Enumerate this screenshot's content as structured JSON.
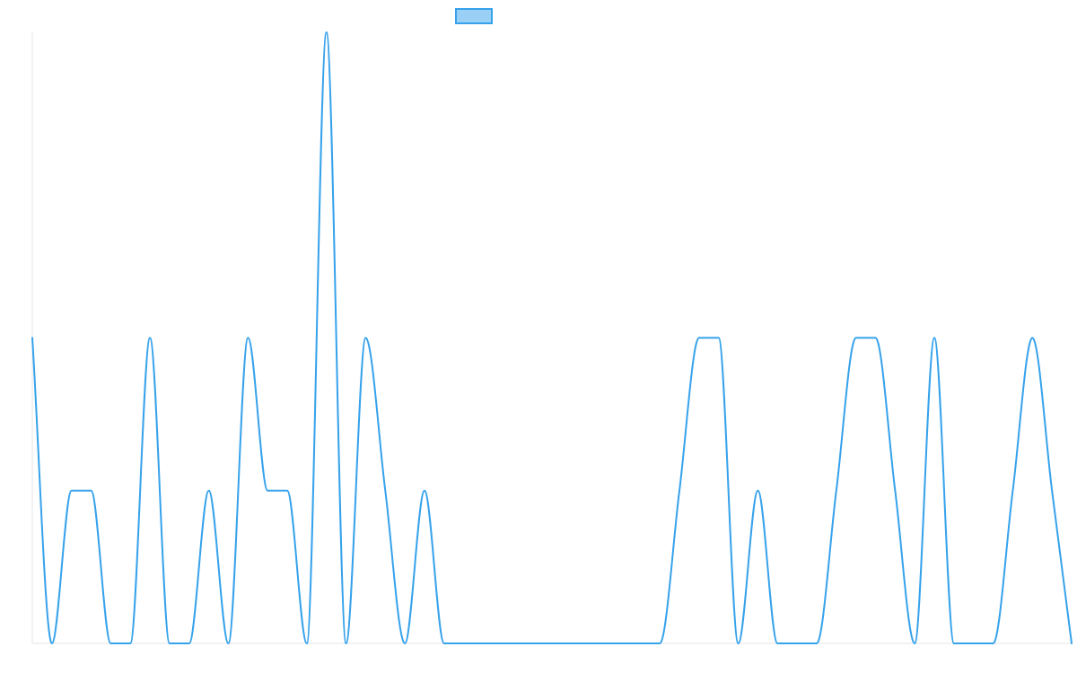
{
  "chart_data": {
    "type": "line",
    "title": "",
    "xlabel": "",
    "ylabel": "",
    "ylim": [
      0,
      4
    ],
    "grid": false,
    "legend": "top-center",
    "series": [
      {
        "name": "",
        "color": "#36a2eb",
        "fill_color": "#9ad0f5",
        "values": [
          2,
          0,
          1,
          1,
          0,
          0,
          2,
          0,
          0,
          1,
          0,
          2,
          1,
          1,
          0,
          4,
          0,
          2,
          1,
          0,
          1,
          0,
          0,
          0,
          0,
          0,
          0,
          0,
          0,
          0,
          0,
          0,
          0,
          1,
          2,
          2,
          0,
          1,
          0,
          0,
          0,
          1,
          2,
          2,
          1,
          0,
          2,
          0,
          0,
          0,
          1,
          2,
          1,
          0
        ]
      }
    ]
  }
}
